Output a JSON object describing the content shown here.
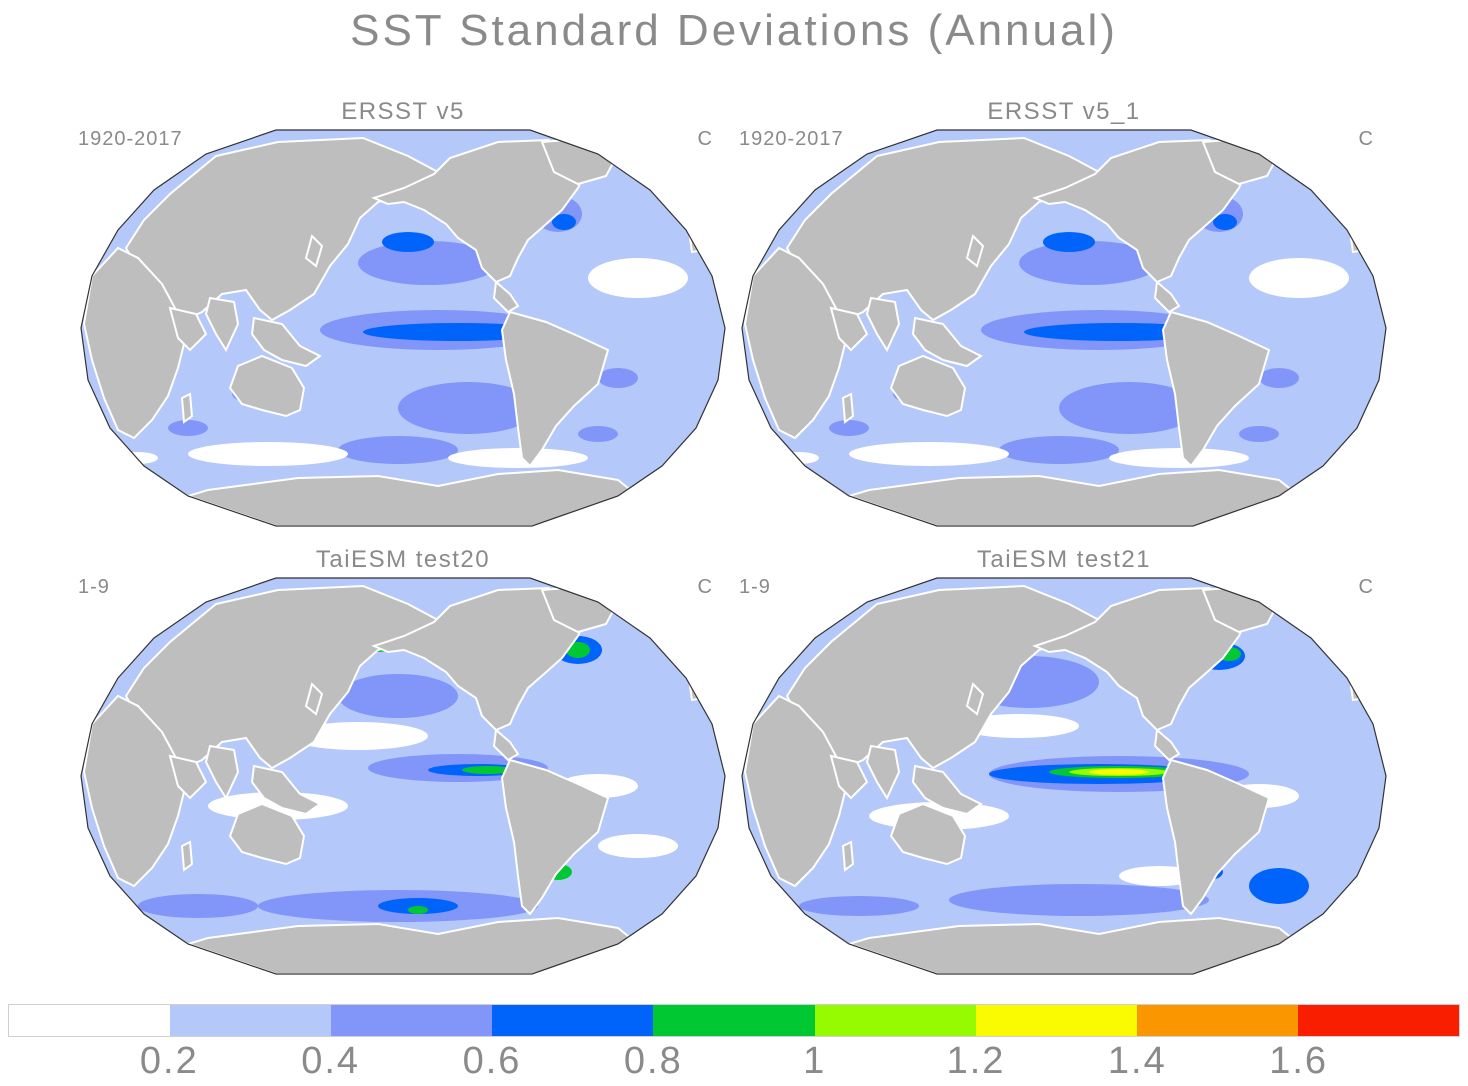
{
  "title": "SST Standard Deviations (Annual)",
  "panels": [
    {
      "title": "ERSST v5",
      "period": "1920-2017",
      "unit": "C"
    },
    {
      "title": "ERSST v5_1",
      "period": "1920-2017",
      "unit": "C"
    },
    {
      "title": "TaiESM test20",
      "period": "1-9",
      "unit": "C"
    },
    {
      "title": "TaiESM test21",
      "period": "1-9",
      "unit": "C"
    }
  ],
  "colorbar": {
    "colors": [
      "#ffffff",
      "#b4c8fa",
      "#8296fa",
      "#0064fa",
      "#00c832",
      "#96fa00",
      "#fafa00",
      "#fa9600",
      "#fa1e00"
    ],
    "labels": [
      "0.2",
      "0.4",
      "0.6",
      "0.8",
      "1",
      "1.2",
      "1.4",
      "1.6"
    ]
  },
  "colors": {
    "land": "#bebebe",
    "ocean_base": "#b4c8fa",
    "text": "#8a8a8a"
  }
}
